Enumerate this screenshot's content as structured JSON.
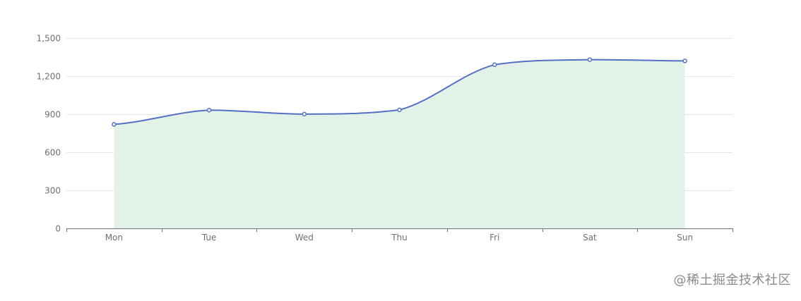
{
  "chart_data": {
    "type": "area",
    "categories": [
      "Mon",
      "Tue",
      "Wed",
      "Thu",
      "Fri",
      "Sat",
      "Sun"
    ],
    "values": [
      820,
      932,
      901,
      934,
      1290,
      1330,
      1320
    ],
    "y_ticks": [
      "0",
      "300",
      "600",
      "900",
      "1,200",
      "1,500"
    ],
    "y_tick_values": [
      0,
      300,
      600,
      900,
      1200,
      1500
    ],
    "ylim": [
      0,
      1500
    ],
    "smooth": true,
    "grid": true,
    "line_color": "#5470c6",
    "area_color": "#e3f2e8",
    "grid_color": "#e6e6e6",
    "axis_color": "#6e7079",
    "label_color": "#6e7079"
  },
  "watermark": {
    "text": "@稀土掘金技术社区"
  }
}
